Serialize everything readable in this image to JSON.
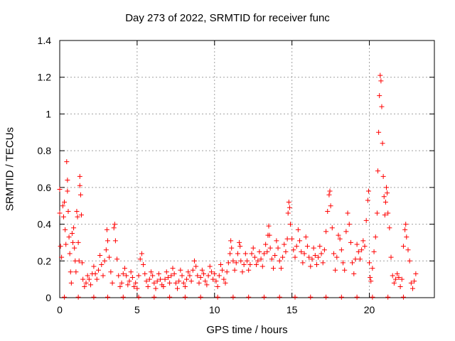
{
  "chart_data": {
    "type": "scatter",
    "title": "Day 273 of 2022, SRMTID for receiver func",
    "xlabel": "GPS time / hours",
    "ylabel": "SRMTID / TECUs",
    "xlim": [
      0,
      24.2
    ],
    "ylim": [
      0,
      1.4
    ],
    "xticks": [
      0,
      5,
      10,
      15,
      20
    ],
    "xtick_labels": [
      "0",
      "5",
      "10",
      "15",
      "20"
    ],
    "yticks": [
      0,
      0.2,
      0.4,
      0.6,
      0.8,
      1.0,
      1.2,
      1.4
    ],
    "ytick_labels": [
      "0",
      "0.2",
      "0.4",
      "0.6",
      "0.8",
      "1",
      "1.2",
      "1.4"
    ],
    "grid": true,
    "marker": "+",
    "color": "#ff0000",
    "series": [
      {
        "name": "SRMTID",
        "points": [
          [
            0.0,
            0.59
          ],
          [
            0.0,
            0.46
          ],
          [
            0.05,
            0.28
          ],
          [
            0.12,
            0.22
          ],
          [
            0.2,
            0.5
          ],
          [
            0.25,
            0.44
          ],
          [
            0.3,
            0.52
          ],
          [
            0.35,
            0.37
          ],
          [
            0.4,
            0.29
          ],
          [
            0.45,
            0.74
          ],
          [
            0.5,
            0.64
          ],
          [
            0.5,
            0.58
          ],
          [
            0.55,
            0.47
          ],
          [
            0.6,
            0.33
          ],
          [
            0.65,
            0.24
          ],
          [
            0.7,
            0.14
          ],
          [
            0.75,
            0.08
          ],
          [
            0.8,
            0.35
          ],
          [
            0.85,
            0.3
          ],
          [
            0.9,
            0.38
          ],
          [
            0.95,
            0.27
          ],
          [
            1.0,
            0.2
          ],
          [
            1.05,
            0.14
          ],
          [
            1.1,
            0.47
          ],
          [
            1.15,
            0.44
          ],
          [
            1.2,
            0.3
          ],
          [
            1.25,
            0.2
          ],
          [
            1.3,
            0.66
          ],
          [
            1.3,
            0.61
          ],
          [
            1.35,
            0.56
          ],
          [
            1.4,
            0.45
          ],
          [
            1.45,
            0.19
          ],
          [
            1.5,
            0.1
          ],
          [
            1.6,
            0.06
          ],
          [
            1.7,
            0.08
          ],
          [
            1.8,
            0.12
          ],
          [
            1.9,
            0.1
          ],
          [
            2.0,
            0.07
          ],
          [
            2.1,
            0.13
          ],
          [
            2.2,
            0.17
          ],
          [
            2.3,
            0.13
          ],
          [
            2.4,
            0.1
          ],
          [
            2.5,
            0.15
          ],
          [
            2.6,
            0.23
          ],
          [
            2.7,
            0.18
          ],
          [
            2.8,
            0.12
          ],
          [
            2.9,
            0.2
          ],
          [
            3.0,
            0.26
          ],
          [
            3.05,
            0.37
          ],
          [
            3.1,
            0.31
          ],
          [
            3.2,
            0.22
          ],
          [
            3.3,
            0.14
          ],
          [
            3.4,
            0.08
          ],
          [
            3.5,
            0.38
          ],
          [
            3.55,
            0.4
          ],
          [
            3.6,
            0.31
          ],
          [
            3.7,
            0.21
          ],
          [
            3.8,
            0.12
          ],
          [
            3.9,
            0.06
          ],
          [
            4.0,
            0.08
          ],
          [
            4.1,
            0.13
          ],
          [
            4.2,
            0.16
          ],
          [
            4.3,
            0.12
          ],
          [
            4.4,
            0.07
          ],
          [
            4.5,
            0.09
          ],
          [
            4.6,
            0.14
          ],
          [
            4.7,
            0.11
          ],
          [
            4.8,
            0.06
          ],
          [
            4.9,
            0.08
          ],
          [
            5.0,
            0.05
          ],
          [
            5.1,
            0.12
          ],
          [
            5.2,
            0.21
          ],
          [
            5.3,
            0.24
          ],
          [
            5.4,
            0.18
          ],
          [
            5.5,
            0.13
          ],
          [
            5.6,
            0.09
          ],
          [
            5.7,
            0.06
          ],
          [
            5.8,
            0.1
          ],
          [
            5.9,
            0.14
          ],
          [
            6.0,
            0.12
          ],
          [
            6.1,
            0.08
          ],
          [
            6.2,
            0.05
          ],
          [
            6.3,
            0.09
          ],
          [
            6.4,
            0.13
          ],
          [
            6.5,
            0.1
          ],
          [
            6.6,
            0.07
          ],
          [
            6.7,
            0.06
          ],
          [
            6.8,
            0.1
          ],
          [
            6.9,
            0.14
          ],
          [
            7.0,
            0.11
          ],
          [
            7.1,
            0.08
          ],
          [
            7.2,
            0.12
          ],
          [
            7.3,
            0.16
          ],
          [
            7.4,
            0.13
          ],
          [
            7.5,
            0.08
          ],
          [
            7.6,
            0.05
          ],
          [
            7.7,
            0.09
          ],
          [
            7.8,
            0.15
          ],
          [
            7.9,
            0.12
          ],
          [
            8.0,
            0.08
          ],
          [
            8.1,
            0.06
          ],
          [
            8.2,
            0.1
          ],
          [
            8.3,
            0.14
          ],
          [
            8.4,
            0.12
          ],
          [
            8.5,
            0.09
          ],
          [
            8.6,
            0.15
          ],
          [
            8.7,
            0.2
          ],
          [
            8.8,
            0.17
          ],
          [
            8.9,
            0.12
          ],
          [
            9.0,
            0.08
          ],
          [
            9.1,
            0.11
          ],
          [
            9.2,
            0.15
          ],
          [
            9.3,
            0.13
          ],
          [
            9.4,
            0.09
          ],
          [
            9.5,
            0.07
          ],
          [
            9.6,
            0.12
          ],
          [
            9.7,
            0.17
          ],
          [
            9.8,
            0.14
          ],
          [
            9.9,
            0.1
          ],
          [
            10.0,
            0.13
          ],
          [
            10.1,
            0.09
          ],
          [
            10.2,
            0.06
          ],
          [
            10.3,
            0.12
          ],
          [
            10.4,
            0.18
          ],
          [
            10.5,
            0.15
          ],
          [
            10.6,
            0.1
          ],
          [
            10.7,
            0.08
          ],
          [
            10.8,
            0.14
          ],
          [
            10.9,
            0.19
          ],
          [
            11.0,
            0.24
          ],
          [
            11.05,
            0.31
          ],
          [
            11.1,
            0.27
          ],
          [
            11.2,
            0.2
          ],
          [
            11.3,
            0.15
          ],
          [
            11.4,
            0.19
          ],
          [
            11.5,
            0.24
          ],
          [
            11.6,
            0.3
          ],
          [
            11.65,
            0.28
          ],
          [
            11.7,
            0.2
          ],
          [
            11.8,
            0.14
          ],
          [
            11.9,
            0.18
          ],
          [
            12.0,
            0.24
          ],
          [
            12.1,
            0.2
          ],
          [
            12.2,
            0.15
          ],
          [
            12.3,
            0.18
          ],
          [
            12.4,
            0.24
          ],
          [
            12.5,
            0.27
          ],
          [
            12.6,
            0.22
          ],
          [
            12.7,
            0.18
          ],
          [
            12.8,
            0.2
          ],
          [
            12.9,
            0.25
          ],
          [
            13.0,
            0.21
          ],
          [
            13.1,
            0.17
          ],
          [
            13.2,
            0.24
          ],
          [
            13.3,
            0.29
          ],
          [
            13.4,
            0.25
          ],
          [
            13.45,
            0.34
          ],
          [
            13.5,
            0.39
          ],
          [
            13.55,
            0.34
          ],
          [
            13.6,
            0.27
          ],
          [
            13.7,
            0.21
          ],
          [
            13.8,
            0.16
          ],
          [
            13.9,
            0.23
          ],
          [
            14.0,
            0.31
          ],
          [
            14.1,
            0.27
          ],
          [
            14.2,
            0.2
          ],
          [
            14.3,
            0.16
          ],
          [
            14.4,
            0.22
          ],
          [
            14.5,
            0.29
          ],
          [
            14.6,
            0.25
          ],
          [
            14.7,
            0.32
          ],
          [
            14.75,
            0.46
          ],
          [
            14.8,
            0.52
          ],
          [
            14.85,
            0.49
          ],
          [
            14.9,
            0.4
          ],
          [
            15.0,
            0.32
          ],
          [
            15.1,
            0.26
          ],
          [
            15.2,
            0.22
          ],
          [
            15.3,
            0.28
          ],
          [
            15.4,
            0.37
          ],
          [
            15.5,
            0.31
          ],
          [
            15.6,
            0.25
          ],
          [
            15.7,
            0.19
          ],
          [
            15.8,
            0.24
          ],
          [
            15.9,
            0.33
          ],
          [
            16.0,
            0.28
          ],
          [
            16.1,
            0.22
          ],
          [
            16.2,
            0.17
          ],
          [
            16.3,
            0.21
          ],
          [
            16.4,
            0.27
          ],
          [
            16.5,
            0.23
          ],
          [
            16.6,
            0.18
          ],
          [
            16.7,
            0.22
          ],
          [
            16.8,
            0.28
          ],
          [
            16.9,
            0.24
          ],
          [
            17.0,
            0.19
          ],
          [
            17.1,
            0.26
          ],
          [
            17.2,
            0.36
          ],
          [
            17.3,
            0.47
          ],
          [
            17.4,
            0.56
          ],
          [
            17.45,
            0.58
          ],
          [
            17.5,
            0.5
          ],
          [
            17.6,
            0.38
          ],
          [
            17.7,
            0.24
          ],
          [
            17.8,
            0.15
          ],
          [
            17.9,
            0.22
          ],
          [
            18.0,
            0.34
          ],
          [
            18.1,
            0.32
          ],
          [
            18.2,
            0.26
          ],
          [
            18.3,
            0.19
          ],
          [
            18.4,
            0.15
          ],
          [
            18.5,
            0.36
          ],
          [
            18.6,
            0.46
          ],
          [
            18.7,
            0.4
          ],
          [
            18.8,
            0.3
          ],
          [
            18.9,
            0.19
          ],
          [
            19.0,
            0.13
          ],
          [
            19.1,
            0.21
          ],
          [
            19.2,
            0.29
          ],
          [
            19.3,
            0.25
          ],
          [
            19.4,
            0.21
          ],
          [
            19.5,
            0.26
          ],
          [
            19.6,
            0.31
          ],
          [
            19.7,
            0.28
          ],
          [
            19.8,
            0.42
          ],
          [
            19.9,
            0.53
          ],
          [
            19.95,
            0.58
          ],
          [
            20.0,
            0.19
          ],
          [
            20.05,
            0.11
          ],
          [
            20.1,
            0.09
          ],
          [
            20.2,
            0.16
          ],
          [
            20.3,
            0.25
          ],
          [
            20.4,
            0.33
          ],
          [
            20.5,
            0.46
          ],
          [
            20.55,
            0.69
          ],
          [
            20.6,
            0.9
          ],
          [
            20.65,
            1.1
          ],
          [
            20.7,
            1.21
          ],
          [
            20.75,
            1.18
          ],
          [
            20.8,
            1.04
          ],
          [
            20.85,
            0.84
          ],
          [
            20.9,
            0.66
          ],
          [
            20.95,
            0.55
          ],
          [
            21.0,
            0.45
          ],
          [
            21.05,
            0.52
          ],
          [
            21.1,
            0.6
          ],
          [
            21.15,
            0.57
          ],
          [
            21.2,
            0.46
          ],
          [
            21.3,
            0.38
          ],
          [
            21.4,
            0.22
          ],
          [
            21.5,
            0.12
          ],
          [
            21.6,
            0.08
          ],
          [
            21.7,
            0.1
          ],
          [
            21.8,
            0.13
          ],
          [
            21.9,
            0.11
          ],
          [
            22.0,
            0.06
          ],
          [
            22.1,
            0.1
          ],
          [
            22.2,
            0.28
          ],
          [
            22.3,
            0.37
          ],
          [
            22.35,
            0.4
          ],
          [
            22.4,
            0.33
          ],
          [
            22.5,
            0.26
          ],
          [
            22.6,
            0.2
          ],
          [
            22.7,
            0.08
          ],
          [
            22.8,
            0.05
          ],
          [
            22.9,
            0.09
          ],
          [
            23.0,
            0.13
          ],
          [
            0.3,
            0.003
          ],
          [
            1.2,
            0.003
          ],
          [
            2.2,
            0.003
          ],
          [
            3.1,
            0.003
          ],
          [
            4.1,
            0.003
          ],
          [
            5.1,
            0.003
          ],
          [
            6.1,
            0.003
          ],
          [
            7.1,
            0.003
          ],
          [
            8.1,
            0.003
          ],
          [
            9.1,
            0.003
          ],
          [
            10.2,
            0.003
          ],
          [
            11.2,
            0.003
          ],
          [
            12.2,
            0.003
          ],
          [
            13.2,
            0.003
          ],
          [
            14.2,
            0.003
          ],
          [
            15.2,
            0.003
          ],
          [
            16.2,
            0.003
          ],
          [
            17.2,
            0.003
          ],
          [
            18.2,
            0.003
          ],
          [
            19.2,
            0.003
          ],
          [
            20.2,
            0.003
          ],
          [
            21.2,
            0.003
          ],
          [
            22.2,
            0.003
          ]
        ]
      }
    ]
  }
}
